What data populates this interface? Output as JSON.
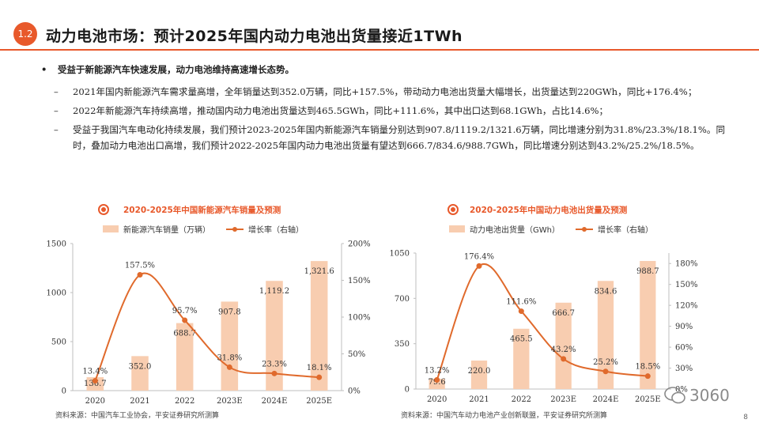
{
  "header": {
    "section": "1.2",
    "title": "动力电池市场：预计2025年国内动力电池出货量接近1TWh"
  },
  "bullets": {
    "main": "受益于新能源汽车快速发展，动力电池维持高速增长态势。",
    "dot": "•",
    "dash": "–",
    "items": [
      "2021年国内新能源汽车需求量高增，全年销量达到352.0万辆，同比+157.5%，带动动力电池出货量大幅增长，出货量达到220GWh，同比+176.4%；",
      "2022年新能源汽车持续高增，推动国内动力电池出货量达到465.5GWh，同比+111.6%，其中出口达到68.1GWh，占比14.6%；",
      "受益于我国汽车电动化持续发展，我们预计2023-2025年国内新能源汽车销量分别达到907.8/1119.2/1321.6万辆，同比增速分别为31.8%/23.3%/18.1%。同时，叠加动力电池出口高增，我们预计2022-2025年国内动力电池出货量有望达到666.7/834.6/988.7GWh，同比增速分别达到43.2%/25.2%/18.5%。"
    ]
  },
  "chart_data": [
    {
      "type": "bar",
      "title": "2020-2025年中国新能源汽车销量及预测",
      "categories": [
        "2020",
        "2021",
        "2022",
        "2023E",
        "2024E",
        "2025E"
      ],
      "series": [
        {
          "name": "新能源汽车销量（万辆）",
          "values": [
            136.7,
            352.0,
            688.7,
            907.8,
            1119.2,
            1321.6
          ],
          "labels": [
            "136.7",
            "352.0",
            "688.7",
            "907.8",
            "1,119.2",
            "1,321.6"
          ]
        },
        {
          "name": "增长率（右轴）",
          "type": "line",
          "values": [
            13.4,
            157.5,
            95.7,
            31.8,
            23.3,
            18.1
          ],
          "labels": [
            "13.4%",
            "157.5%",
            "95.7%",
            "31.8%",
            "23.3%",
            "18.1%"
          ]
        }
      ],
      "yticks": [
        "0",
        "500",
        "1000",
        "1500"
      ],
      "ylim": [
        0,
        1500
      ],
      "y2ticks": [
        "0%",
        "50%",
        "100%",
        "150%",
        "200%"
      ],
      "y2lim": [
        0,
        200
      ],
      "source": "资料来源：中国汽车工业协会，平安证券研究所测算"
    },
    {
      "type": "bar",
      "title": "2020-2025年中国动力电池出货量及预测",
      "categories": [
        "2020",
        "2021",
        "2022",
        "2023E",
        "2024E",
        "2025E"
      ],
      "series": [
        {
          "name": "动力电池出货量（GWh）",
          "values": [
            79.6,
            220.0,
            465.5,
            666.7,
            834.6,
            988.7
          ],
          "labels": [
            "79.6",
            "220.0",
            "465.5",
            "666.7",
            "834.6",
            "988.7"
          ]
        },
        {
          "name": "增长率（右轴）",
          "type": "line",
          "values": [
            13.2,
            176.4,
            111.6,
            43.2,
            25.2,
            18.5
          ],
          "labels": [
            "13.2%",
            "176.4%",
            "111.6%",
            "43.2%",
            "25.2%",
            "18.5%"
          ]
        }
      ],
      "yticks": [
        "0",
        "350",
        "700",
        "1050"
      ],
      "ylim": [
        0,
        1050
      ],
      "y2ticks": [
        "0%",
        "30%",
        "60%",
        "90%",
        "120%",
        "150%",
        "180%"
      ],
      "y2lim": [
        0,
        195
      ],
      "source": "资料来源：中国汽车动力电池产业创新联盟，平安证券研究所测算"
    }
  ],
  "colors": {
    "accent": "#E8592B",
    "bar": "#F8CDB0",
    "line": "#E06A2C"
  },
  "watermark": "3060",
  "page_number": "8"
}
